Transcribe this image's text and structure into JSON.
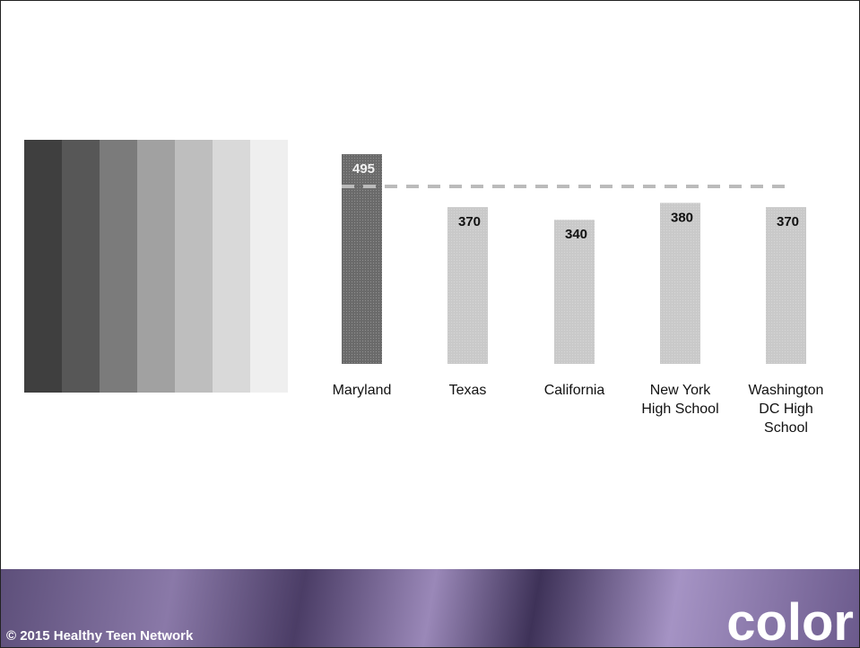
{
  "chart_data": {
    "type": "bar",
    "categories": [
      "Maryland",
      "Texas",
      "California",
      "New York High School",
      "Washington DC High School"
    ],
    "values": [
      495,
      370,
      340,
      380,
      370
    ],
    "colors": [
      "#6a6a6a",
      "#c9c9c9",
      "#c9c9c9",
      "#c9c9c9",
      "#c9c9c9"
    ]
  },
  "footer": {
    "copyright": "© 2015 Healthy Teen Network",
    "title": "color"
  }
}
